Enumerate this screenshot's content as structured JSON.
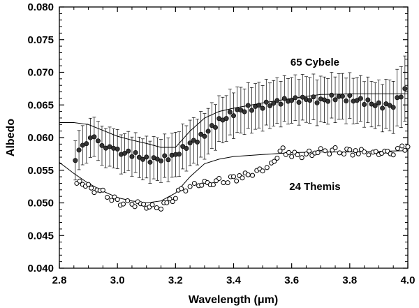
{
  "chart_data": {
    "type": "scatter",
    "title": "",
    "xlabel": "Wavelength (μm)",
    "ylabel": "Albedo",
    "xlim": [
      2.8,
      4.0
    ],
    "ylim": [
      0.04,
      0.08
    ],
    "x_ticks": [
      2.8,
      3.0,
      3.2,
      3.4,
      3.6,
      3.8,
      4.0
    ],
    "x_tick_labels": [
      "2.8",
      "3.0",
      "3.2",
      "3.4",
      "3.6",
      "3.8",
      "4.0"
    ],
    "y_ticks": [
      0.04,
      0.045,
      0.05,
      0.055,
      0.06,
      0.065,
      0.07,
      0.075,
      0.08
    ],
    "y_tick_labels": [
      "0.040",
      "0.045",
      "0.050",
      "0.055",
      "0.060",
      "0.065",
      "0.070",
      "0.075",
      "0.080"
    ],
    "grid": false,
    "annotations": [
      {
        "text": "65 Cybele",
        "x": 3.68,
        "y": 0.071
      },
      {
        "text": "24 Themis",
        "x": 3.68,
        "y": 0.052
      }
    ],
    "series": [
      {
        "name": "65 Cybele",
        "marker": "filled-circle",
        "error_bars": true,
        "points": [
          [
            2.855,
            0.0565,
            0.003
          ],
          [
            2.88,
            0.059,
            0.003
          ],
          [
            2.92,
            0.0598,
            0.003
          ],
          [
            2.96,
            0.0588,
            0.003
          ],
          [
            3.0,
            0.0578,
            0.003
          ],
          [
            3.05,
            0.0575,
            0.003
          ],
          [
            3.1,
            0.0567,
            0.0032
          ],
          [
            3.15,
            0.0566,
            0.0033
          ],
          [
            3.2,
            0.0574,
            0.0034
          ],
          [
            3.25,
            0.059,
            0.0035
          ],
          [
            3.3,
            0.0605,
            0.0035
          ],
          [
            3.35,
            0.0625,
            0.0035
          ],
          [
            3.4,
            0.0638,
            0.0035
          ],
          [
            3.45,
            0.0645,
            0.0035
          ],
          [
            3.5,
            0.0648,
            0.0035
          ],
          [
            3.55,
            0.0655,
            0.0035
          ],
          [
            3.6,
            0.0657,
            0.0035
          ],
          [
            3.65,
            0.066,
            0.0035
          ],
          [
            3.7,
            0.0656,
            0.0035
          ],
          [
            3.75,
            0.0662,
            0.0035
          ],
          [
            3.8,
            0.066,
            0.0035
          ],
          [
            3.85,
            0.0655,
            0.0035
          ],
          [
            3.9,
            0.065,
            0.0035
          ],
          [
            3.95,
            0.0648,
            0.004
          ],
          [
            3.99,
            0.0675,
            0.005
          ]
        ],
        "model_curve": [
          [
            2.8,
            0.0623
          ],
          [
            2.85,
            0.0623
          ],
          [
            2.9,
            0.062
          ],
          [
            2.95,
            0.0611
          ],
          [
            3.0,
            0.0602
          ],
          [
            3.05,
            0.0596
          ],
          [
            3.1,
            0.0591
          ],
          [
            3.15,
            0.0585
          ],
          [
            3.2,
            0.0585
          ],
          [
            3.25,
            0.061
          ],
          [
            3.3,
            0.063
          ],
          [
            3.35,
            0.064
          ],
          [
            3.4,
            0.0645
          ],
          [
            3.5,
            0.0653
          ],
          [
            3.6,
            0.066
          ],
          [
            3.7,
            0.0666
          ],
          [
            3.8,
            0.0667
          ],
          [
            3.9,
            0.0667
          ],
          [
            4.0,
            0.0667
          ]
        ]
      },
      {
        "name": "24 Themis",
        "marker": "open-circle",
        "error_bars": false,
        "points": [
          [
            2.86,
            0.053
          ],
          [
            2.88,
            0.053
          ],
          [
            2.9,
            0.0525
          ],
          [
            2.92,
            0.052
          ],
          [
            2.95,
            0.0515
          ],
          [
            2.98,
            0.0508
          ],
          [
            3.0,
            0.0502
          ],
          [
            3.02,
            0.05
          ],
          [
            3.05,
            0.0498
          ],
          [
            3.08,
            0.0497
          ],
          [
            3.1,
            0.0495
          ],
          [
            3.12,
            0.0493
          ],
          [
            3.15,
            0.0495
          ],
          [
            3.18,
            0.0502
          ],
          [
            3.2,
            0.051
          ],
          [
            3.22,
            0.052
          ],
          [
            3.25,
            0.0525
          ],
          [
            3.28,
            0.0528
          ],
          [
            3.3,
            0.053
          ],
          [
            3.33,
            0.0532
          ],
          [
            3.35,
            0.0533
          ],
          [
            3.38,
            0.0535
          ],
          [
            3.4,
            0.0537
          ],
          [
            3.43,
            0.054
          ],
          [
            3.45,
            0.0543
          ],
          [
            3.48,
            0.0548
          ],
          [
            3.5,
            0.0552
          ],
          [
            3.53,
            0.0557
          ],
          [
            3.55,
            0.0573
          ],
          [
            3.57,
            0.058
          ],
          [
            3.6,
            0.0574
          ],
          [
            3.62,
            0.0572
          ],
          [
            3.65,
            0.0575
          ],
          [
            3.68,
            0.0578
          ],
          [
            3.7,
            0.058
          ],
          [
            3.73,
            0.0579
          ],
          [
            3.75,
            0.058
          ],
          [
            3.78,
            0.0579
          ],
          [
            3.8,
            0.0578
          ],
          [
            3.83,
            0.0577
          ],
          [
            3.85,
            0.0578
          ],
          [
            3.88,
            0.0576
          ],
          [
            3.9,
            0.0577
          ],
          [
            3.93,
            0.0575
          ],
          [
            3.95,
            0.0578
          ],
          [
            3.98,
            0.0583
          ],
          [
            4.0,
            0.0586
          ]
        ],
        "model_curve": [
          [
            2.8,
            0.0562
          ],
          [
            2.85,
            0.0545
          ],
          [
            2.9,
            0.053
          ],
          [
            2.95,
            0.0518
          ],
          [
            3.0,
            0.0508
          ],
          [
            3.05,
            0.0503
          ],
          [
            3.1,
            0.05
          ],
          [
            3.15,
            0.0503
          ],
          [
            3.2,
            0.0515
          ],
          [
            3.25,
            0.054
          ],
          [
            3.3,
            0.056
          ],
          [
            3.35,
            0.0567
          ],
          [
            3.4,
            0.0571
          ],
          [
            3.5,
            0.0574
          ],
          [
            3.6,
            0.0577
          ],
          [
            3.7,
            0.0578
          ],
          [
            3.8,
            0.0578
          ],
          [
            3.9,
            0.0579
          ],
          [
            4.0,
            0.058
          ]
        ]
      }
    ]
  }
}
